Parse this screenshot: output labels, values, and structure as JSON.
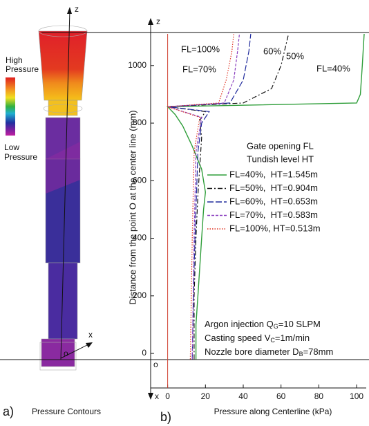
{
  "panel_a": {
    "high": [
      "High",
      "Pressure"
    ],
    "low": [
      "Low",
      "Pressure"
    ],
    "z": "z",
    "x": "x",
    "o": "o",
    "letter": "a)",
    "caption": "Pressure Contours"
  },
  "chart_data": {
    "type": "line",
    "letter": "b)",
    "xlabel": "Pressure along Centerline (kPa)",
    "ylabel": "Distance from the point O at the center line (mm)",
    "z": "z",
    "x": "x",
    "o": "o",
    "xlim": [
      -9,
      104
    ],
    "ylim": [
      -120,
      1110
    ],
    "xticks": [
      0,
      20,
      40,
      60,
      80,
      100
    ],
    "yticks": [
      0,
      200,
      400,
      600,
      800,
      1000
    ],
    "legend_title": [
      "Gate opening FL",
      "Tundish level HT"
    ],
    "series": [
      {
        "name": "FL=40%,  HT=1.545m",
        "color": "#2f9e3a",
        "dash": "solid",
        "distance": [
          -20,
          100,
          200,
          300,
          400,
          500,
          560,
          640,
          720,
          790,
          830,
          857,
          870,
          900,
          1000,
          1110
        ],
        "values": [
          15,
          15,
          16,
          17,
          18,
          19,
          20,
          18,
          13,
          8,
          4,
          0,
          100,
          102,
          103,
          104
        ]
      },
      {
        "name": "FL=50%,  HT=0.904m",
        "color": "#111111",
        "dash": "dashdot",
        "distance": [
          -20,
          200,
          400,
          550,
          650,
          750,
          810,
          840,
          857,
          870,
          920,
          1000,
          1110
        ],
        "values": [
          14,
          14,
          15,
          16,
          17,
          18,
          17,
          20,
          0,
          40,
          55,
          60,
          64
        ]
      },
      {
        "name": "FL=60%,  HT=0.653m",
        "color": "#1f2a9c",
        "dash": "longdash",
        "distance": [
          -20,
          300,
          500,
          700,
          800,
          840,
          857,
          870,
          950,
          1050,
          1110
        ],
        "values": [
          13,
          14,
          15,
          16,
          18,
          22,
          0,
          33,
          40,
          43,
          44
        ]
      },
      {
        "name": "FL=70%,  HT=0.583m",
        "color": "#8a3fbf",
        "dash": "dashed",
        "distance": [
          -20,
          400,
          700,
          820,
          857,
          870,
          950,
          1050,
          1110
        ],
        "values": [
          13,
          14,
          15,
          18,
          0,
          30,
          35,
          37,
          38
        ]
      },
      {
        "name": "FL=100%, HT=0.513m",
        "color": "#e0301e",
        "dash": "dotted",
        "distance": [
          -20,
          400,
          700,
          820,
          857,
          870,
          950,
          1050,
          1110
        ],
        "values": [
          12,
          13,
          14,
          17,
          0,
          27,
          31,
          34,
          35
        ]
      }
    ],
    "curve_labels": [
      {
        "text": "FL=100%",
        "color": "#e0301e"
      },
      {
        "text": "60%",
        "color": "#1f2a9c"
      },
      {
        "text": "50%",
        "color": "#111111"
      },
      {
        "text": "FL=70%",
        "color": "#8a3fbf"
      },
      {
        "text": "FL=40%",
        "color": "#2f9e3a"
      }
    ],
    "notes": [
      [
        "Argon injection Q",
        "G",
        "=10 SLPM"
      ],
      [
        "Casting speed V",
        "C",
        "=1m/min"
      ],
      [
        "Nozzle bore diameter D",
        "B",
        "=78mm"
      ]
    ]
  }
}
